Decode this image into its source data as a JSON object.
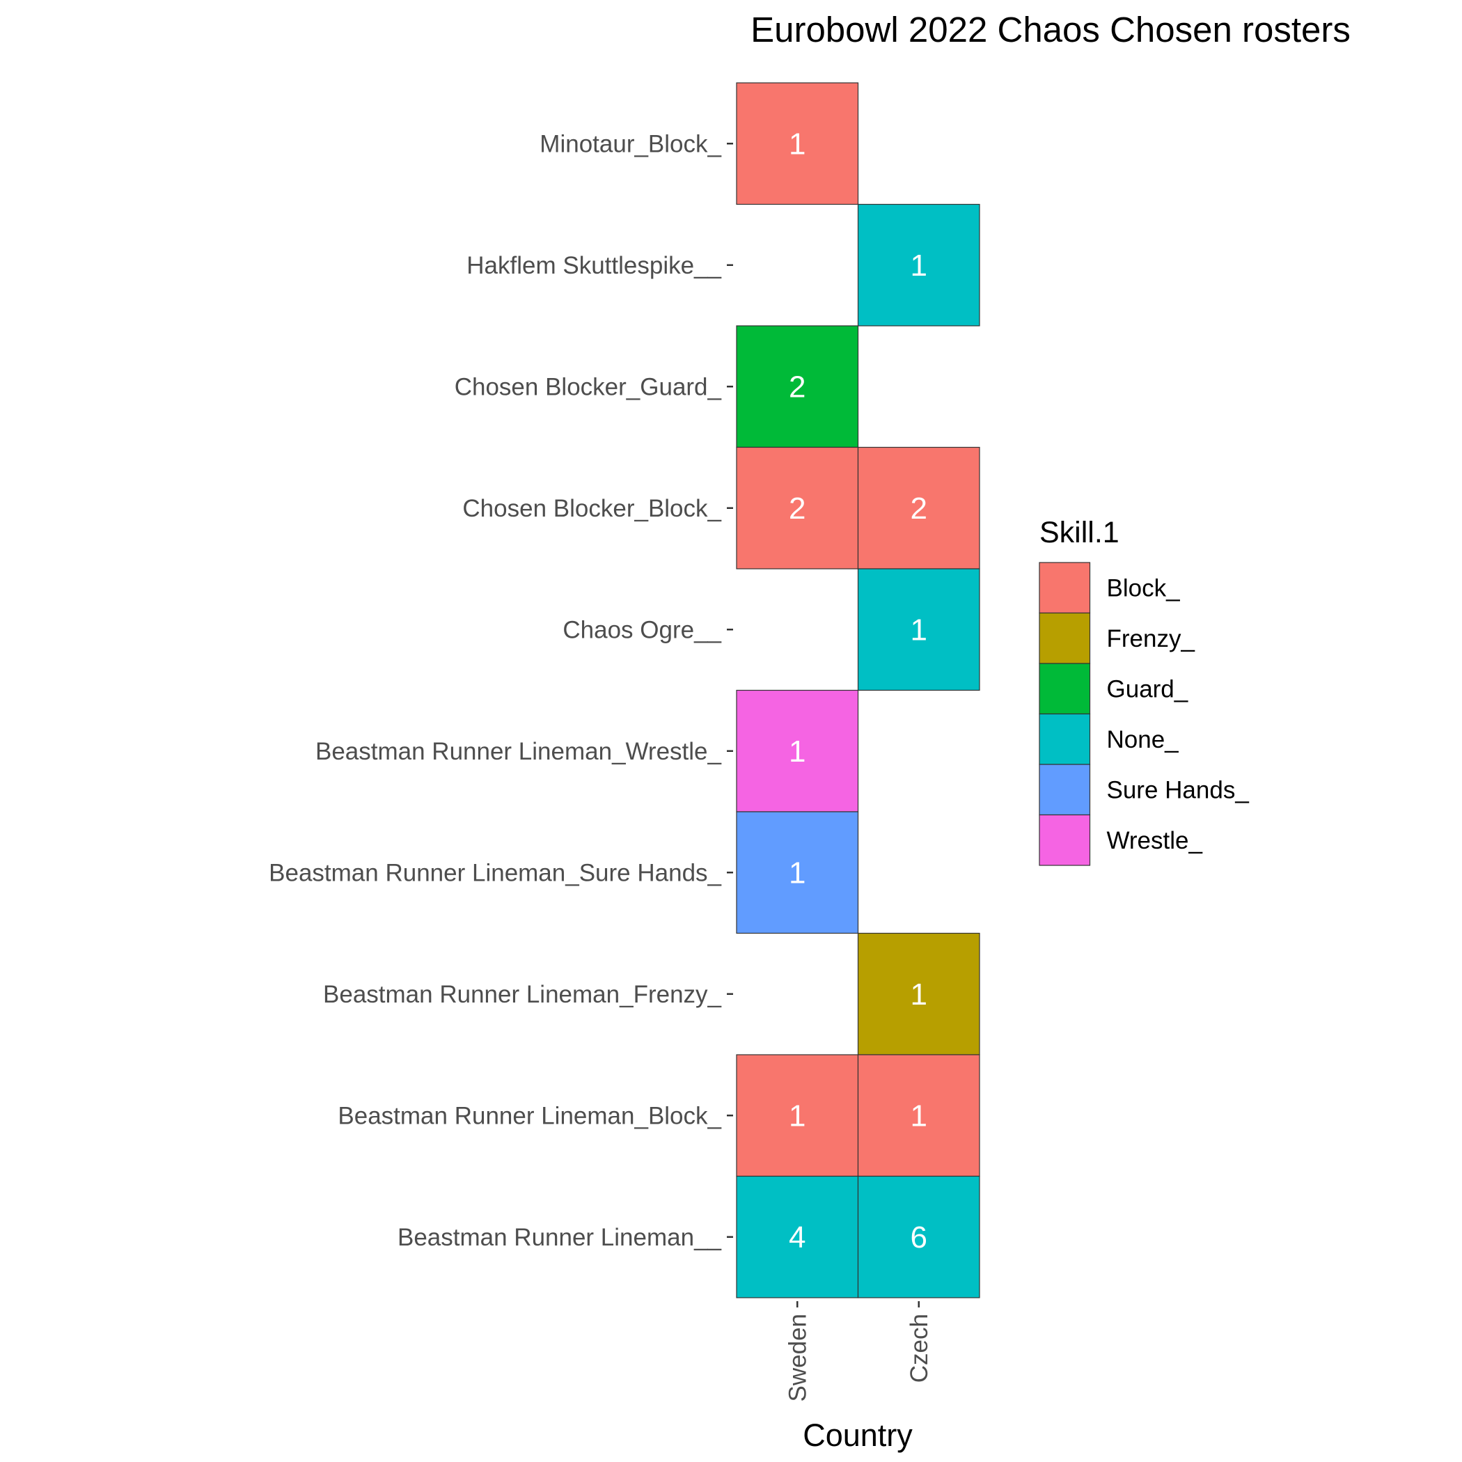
{
  "chart_data": {
    "type": "heatmap",
    "title": "Eurobowl 2022 Chaos Chosen rosters",
    "xlabel": "Country",
    "ylabel": "",
    "x_categories": [
      "Sweden",
      "Czech"
    ],
    "y_categories": [
      "Minotaur_Block_",
      "Hakflem Skuttlespike__",
      "Chosen Blocker_Guard_",
      "Chosen Blocker_Block_",
      "Chaos Ogre__",
      "Beastman Runner Lineman_Wrestle_",
      "Beastman Runner Lineman_Sure Hands_",
      "Beastman Runner Lineman_Frenzy_",
      "Beastman Runner Lineman_Block_",
      "Beastman Runner Lineman__"
    ],
    "cells": [
      {
        "x": "Sweden",
        "y": "Minotaur_Block_",
        "value": 1,
        "skill": "Block_"
      },
      {
        "x": "Czech",
        "y": "Hakflem Skuttlespike__",
        "value": 1,
        "skill": "None_"
      },
      {
        "x": "Sweden",
        "y": "Chosen Blocker_Guard_",
        "value": 2,
        "skill": "Guard_"
      },
      {
        "x": "Sweden",
        "y": "Chosen Blocker_Block_",
        "value": 2,
        "skill": "Block_"
      },
      {
        "x": "Czech",
        "y": "Chosen Blocker_Block_",
        "value": 2,
        "skill": "Block_"
      },
      {
        "x": "Czech",
        "y": "Chaos Ogre__",
        "value": 1,
        "skill": "None_"
      },
      {
        "x": "Sweden",
        "y": "Beastman Runner Lineman_Wrestle_",
        "value": 1,
        "skill": "Wrestle_"
      },
      {
        "x": "Sweden",
        "y": "Beastman Runner Lineman_Sure Hands_",
        "value": 1,
        "skill": "Sure Hands_"
      },
      {
        "x": "Czech",
        "y": "Beastman Runner Lineman_Frenzy_",
        "value": 1,
        "skill": "Frenzy_"
      },
      {
        "x": "Sweden",
        "y": "Beastman Runner Lineman_Block_",
        "value": 1,
        "skill": "Block_"
      },
      {
        "x": "Czech",
        "y": "Beastman Runner Lineman_Block_",
        "value": 1,
        "skill": "Block_"
      },
      {
        "x": "Sweden",
        "y": "Beastman Runner Lineman__",
        "value": 4,
        "skill": "None_"
      },
      {
        "x": "Czech",
        "y": "Beastman Runner Lineman__",
        "value": 6,
        "skill": "None_"
      }
    ],
    "legend": {
      "title": "Skill.1",
      "placement": "right",
      "entries": [
        {
          "name": "Block_",
          "color": "#F8766D"
        },
        {
          "name": "Frenzy_",
          "color": "#B79F00"
        },
        {
          "name": "Guard_",
          "color": "#00BA38"
        },
        {
          "name": "None_",
          "color": "#00BFC4"
        },
        {
          "name": "Sure Hands_",
          "color": "#619CFF"
        },
        {
          "name": "Wrestle_",
          "color": "#F564E3"
        }
      ]
    },
    "grid": false
  }
}
